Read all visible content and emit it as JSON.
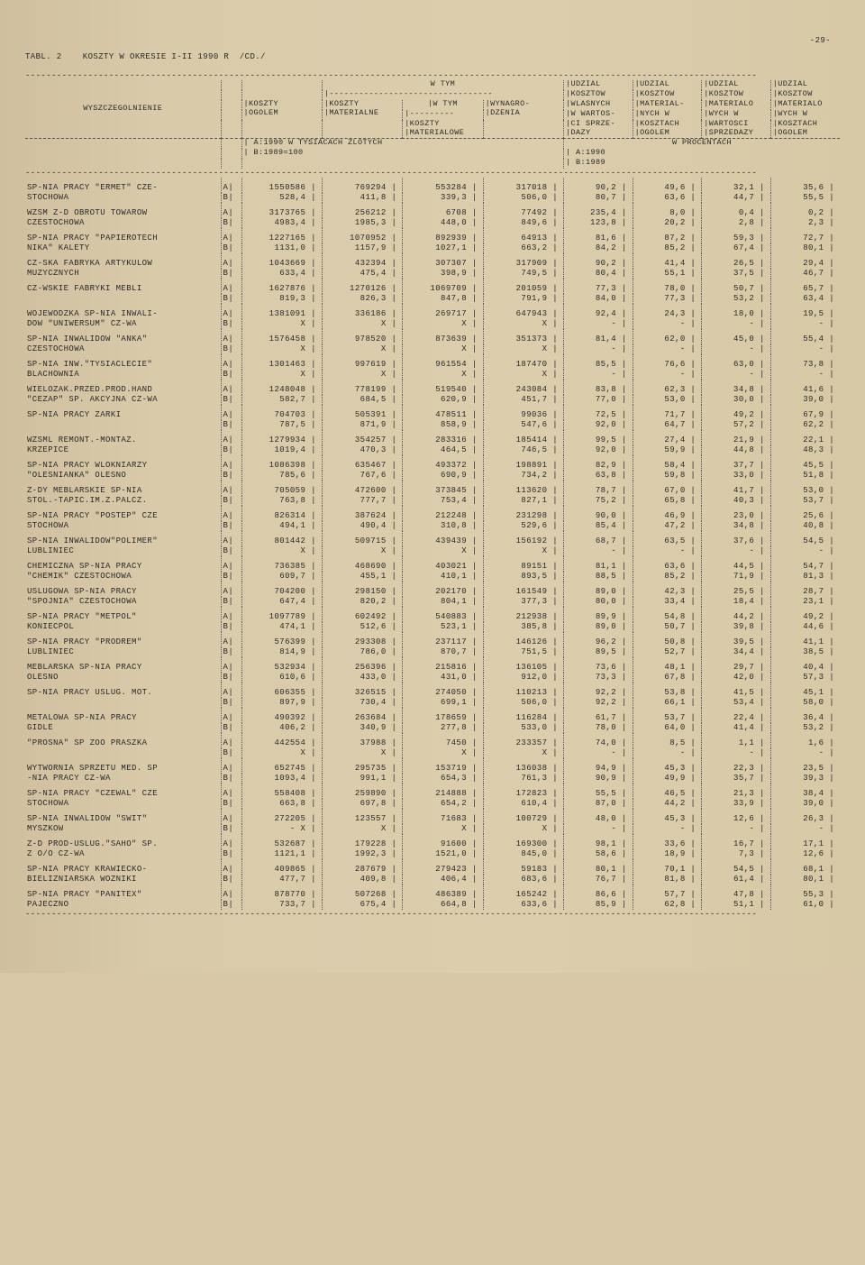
{
  "page_number": "-29-",
  "table_title": "TABL. 2    KOSZTY W OKRESIE I-II 1990 R  /CD./",
  "headers": {
    "col_name": "WYSZCZEGOLNIENIE",
    "koszty_ogolem": "KOSZTY OGOLEM",
    "w_tym": "W TYM",
    "koszty_materialne": "KOSZTY MATERIALNE",
    "w_tym2": "W TYM",
    "koszty_materialowe": "KOSZTY MATERIALOWE",
    "wynagrodzenia": "WYNAGRO- DZENIA",
    "udzial1": "UDZIAL KOSZTOW WLASNYCH W WARTOS- CI SPRZE- DAZY",
    "udzial2": "UDZIAL KOSZTOW MATERIAL- NYCH W KOSZTACH OGOLEM",
    "udzial3": "UDZIAL KOSZTOW MATERIALO WYCH W WARTOSCI SPRZEDAZY",
    "udzial4": "UDZIAL KOSZTOW MATERIALO WYCH W KOSZTACH OGOLEM",
    "w_procentach": "W PROCENTACH",
    "subhead_a": "A:1990 W TYSIACACH ZLOTYCH",
    "subhead_b": "B:1989=100",
    "subhead_a2": "A:1990",
    "subhead_b2": "B:1989"
  },
  "rows": [
    {
      "name": "SP-NIA PRACY \"ERMET\" CZE-\nSTOCHOWA",
      "a": [
        "1550586",
        "769294",
        "553284",
        "317018",
        "90,2",
        "49,6",
        "32,1",
        "35,6"
      ],
      "b": [
        "528,4",
        "411,8",
        "339,3",
        "506,0",
        "80,7",
        "63,6",
        "44,7",
        "55,5"
      ]
    },
    {
      "name": "WZSM Z-D OBROTU TOWAROW\nCZESTOCHOWA",
      "a": [
        "3173765",
        "256212",
        "6708",
        "77492",
        "235,4",
        "8,0",
        "0,4",
        "0,2"
      ],
      "b": [
        "4983,4",
        "1985,3",
        "448,0",
        "849,6",
        "123,8",
        "20,2",
        "2,8",
        "2,3"
      ]
    },
    {
      "name": "SP-NIA PRACY \"PAPIEROTECH\nNIKA\" KALETY",
      "a": [
        "1227165",
        "1070952",
        "892939",
        "64913",
        "81,6",
        "87,2",
        "59,3",
        "72,7"
      ],
      "b": [
        "1131,0",
        "1157,9",
        "1027,1",
        "663,2",
        "84,2",
        "85,2",
        "67,4",
        "80,1"
      ]
    },
    {
      "name": "CZ-SKA FABRYKA ARTYKULOW\nMUZYCZNYCH",
      "a": [
        "1043669",
        "432394",
        "307307",
        "317909",
        "90,2",
        "41,4",
        "26,5",
        "29,4"
      ],
      "b": [
        "633,4",
        "475,4",
        "398,9",
        "749,5",
        "80,4",
        "55,1",
        "37,5",
        "46,7"
      ]
    },
    {
      "name": "CZ-WSKIE FABRYKI MEBLI\n ",
      "a": [
        "1627876",
        "1270126",
        "1069709",
        "201059",
        "77,3",
        "78,0",
        "50,7",
        "65,7"
      ],
      "b": [
        "819,3",
        "826,3",
        "847,8",
        "791,9",
        "84,0",
        "77,3",
        "53,2",
        "63,4"
      ]
    },
    {
      "name": "WOJEWODZKA SP-NIA INWALI-\nDOW \"UNIWERSUM\" CZ-WA",
      "a": [
        "1381091",
        "336186",
        "269717",
        "647943",
        "92,4",
        "24,3",
        "18,0",
        "19,5"
      ],
      "b": [
        "X",
        "X",
        "X",
        "X",
        "-",
        "-",
        "-",
        "-"
      ]
    },
    {
      "name": "SP-NIA INWALIDOW \"ANKA\"\nCZESTOCHOWA",
      "a": [
        "1576458",
        "978520",
        "873639",
        "351373",
        "81,4",
        "62,0",
        "45,0",
        "55,4"
      ],
      "b": [
        "X",
        "X",
        "X",
        "X",
        "-",
        "-",
        "-",
        "-"
      ]
    },
    {
      "name": "SP-NIA INW.\"TYSIACLECIE\"\nBLACHOWNIA",
      "a": [
        "1301463",
        "997619",
        "961554",
        "187470",
        "85,5",
        "76,6",
        "63,0",
        "73,8"
      ],
      "b": [
        "X",
        "X",
        "X",
        "X",
        "-",
        "-",
        "-",
        "-"
      ]
    },
    {
      "name": "WIELOZAK.PRZED.PROD.HAND\n\"CEZAP\" SP. AKCYJNA CZ-WA",
      "a": [
        "1248048",
        "778199",
        "519540",
        "243084",
        "83,8",
        "62,3",
        "34,8",
        "41,6"
      ],
      "b": [
        "582,7",
        "684,5",
        "620,9",
        "451,7",
        "77,0",
        "53,0",
        "30,0",
        "39,0"
      ]
    },
    {
      "name": "SP-NIA PRACY ZARKI\n ",
      "a": [
        "704703",
        "505391",
        "478511",
        "99036",
        "72,5",
        "71,7",
        "49,2",
        "67,9"
      ],
      "b": [
        "787,5",
        "871,9",
        "858,9",
        "547,6",
        "92,0",
        "64,7",
        "57,2",
        "62,2"
      ]
    },
    {
      "name": "WZSML REMONT.-MONTAZ.\nKRZEPICE",
      "a": [
        "1279934",
        "354257",
        "283316",
        "185414",
        "99,5",
        "27,4",
        "21,9",
        "22,1"
      ],
      "b": [
        "1019,4",
        "470,3",
        "464,5",
        "746,5",
        "92,0",
        "59,9",
        "44,8",
        "48,3"
      ]
    },
    {
      "name": "SP-NIA PRACY WLOKNIARZY\n\"OLESNIANKA\" OLESNO",
      "a": [
        "1086398",
        "635467",
        "493372",
        "198891",
        "82,9",
        "58,4",
        "37,7",
        "45,5"
      ],
      "b": [
        "785,6",
        "767,6",
        "690,9",
        "734,2",
        "63,8",
        "59,8",
        "33,0",
        "51,8"
      ]
    },
    {
      "name": "Z-DY MEBLARSKIE SP-NIA\nSTOL.-TAPIC.IM.Z.PALCZ.",
      "a": [
        "705059",
        "472600",
        "373845",
        "113620",
        "78,7",
        "67,0",
        "41,7",
        "53,0"
      ],
      "b": [
        "763,8",
        "777,7",
        "753,4",
        "827,1",
        "75,2",
        "65,8",
        "40,3",
        "53,7"
      ]
    },
    {
      "name": "SP-NIA PRACY \"POSTEP\" CZE\nSTOCHOWA",
      "a": [
        "826314",
        "387624",
        "212248",
        "231298",
        "90,0",
        "46,9",
        "23,0",
        "25,6"
      ],
      "b": [
        "494,1",
        "490,4",
        "310,8",
        "529,6",
        "85,4",
        "47,2",
        "34,8",
        "40,8"
      ]
    },
    {
      "name": "SP-NIA INWALIDOW\"POLIMER\"\nLUBLINIEC",
      "a": [
        "801442",
        "509715",
        "439439",
        "156192",
        "68,7",
        "63,5",
        "37,6",
        "54,5"
      ],
      "b": [
        "X",
        "X",
        "X",
        "X",
        "-",
        "-",
        "-",
        "-"
      ]
    },
    {
      "name": "CHEMICZNA SP-NIA PRACY\n\"CHEMIK\" CZESTOCHOWA",
      "a": [
        "736385",
        "468690",
        "403021",
        "89151",
        "81,1",
        "63,6",
        "44,5",
        "54,7"
      ],
      "b": [
        "609,7",
        "455,1",
        "410,1",
        "893,5",
        "88,5",
        "85,2",
        "71,9",
        "81,3"
      ]
    },
    {
      "name": "USLUGOWA SP-NIA PRACY\n\"SPOJNIA\" CZESTOCHOWA",
      "a": [
        "704200",
        "298150",
        "202170",
        "161549",
        "89,0",
        "42,3",
        "25,5",
        "28,7"
      ],
      "b": [
        "647,4",
        "820,2",
        "804,1",
        "377,3",
        "80,0",
        "33,4",
        "18,4",
        "23,1"
      ]
    },
    {
      "name": "SP-NIA PRACY \"METPOL\"\nKONIECPOL",
      "a": [
        "1097789",
        "602492",
        "540883",
        "212938",
        "89,9",
        "54,8",
        "44,2",
        "49,2"
      ],
      "b": [
        "474,1",
        "512,6",
        "523,1",
        "385,8",
        "89,0",
        "50,7",
        "39,8",
        "44,6"
      ]
    },
    {
      "name": "SP-NIA PRACY \"PRODREM\"\nLUBLINIEC",
      "a": [
        "576399",
        "293308",
        "237117",
        "146126",
        "96,2",
        "50,8",
        "39,5",
        "41,1"
      ],
      "b": [
        "814,9",
        "786,0",
        "870,7",
        "751,5",
        "89,5",
        "52,7",
        "34,4",
        "38,5"
      ]
    },
    {
      "name": "MEBLARSKA SP-NIA PRACY\nOLESNO",
      "a": [
        "532934",
        "256396",
        "215816",
        "136105",
        "73,6",
        "48,1",
        "29,7",
        "40,4"
      ],
      "b": [
        "610,6",
        "433,0",
        "431,0",
        "912,0",
        "73,3",
        "67,8",
        "42,0",
        "57,3"
      ]
    },
    {
      "name": "SP-NIA PRACY USLUG. MOT.\n ",
      "a": [
        "606355",
        "326515",
        "274050",
        "110213",
        "92,2",
        "53,8",
        "41,5",
        "45,1"
      ],
      "b": [
        "897,9",
        "730,4",
        "699,1",
        "506,0",
        "92,2",
        "66,1",
        "53,4",
        "58,0"
      ]
    },
    {
      "name": "METALOWA SP-NIA PRACY\nGIDLE",
      "a": [
        "490392",
        "263684",
        "178659",
        "116284",
        "61,7",
        "53,7",
        "22,4",
        "36,4"
      ],
      "b": [
        "406,2",
        "340,9",
        "277,8",
        "533,0",
        "78,0",
        "64,0",
        "41,4",
        "53,2"
      ]
    },
    {
      "name": "\"PROSNA\" SP ZOO PRASZKA\n ",
      "a": [
        "442554",
        "37988",
        "7450",
        "233357",
        "74,0",
        "8,5",
        "1,1",
        "1,6"
      ],
      "b": [
        "X",
        "X",
        "X",
        "X",
        "-",
        "-",
        "-",
        "-"
      ]
    },
    {
      "name": "WYTWORNIA SPRZETU MED. SP\n-NIA PRACY CZ-WA",
      "a": [
        "652745",
        "295735",
        "153719",
        "136038",
        "94,9",
        "45,3",
        "22,3",
        "23,5"
      ],
      "b": [
        "1093,4",
        "991,1",
        "654,3",
        "761,3",
        "90,9",
        "49,9",
        "35,7",
        "39,3"
      ]
    },
    {
      "name": "SP-NIA PRACY \"CZEWAL\" CZE\nSTOCHOWA",
      "a": [
        "558408",
        "259890",
        "214888",
        "172823",
        "55,5",
        "46,5",
        "21,3",
        "38,4"
      ],
      "b": [
        "663,8",
        "697,8",
        "654,2",
        "610,4",
        "87,0",
        "44,2",
        "33,9",
        "39,0"
      ]
    },
    {
      "name": "SP-NIA INWALIDOW \"SWIT\"\nMYSZKOW",
      "a": [
        "272205",
        "123557",
        "71683",
        "100729",
        "48,0",
        "45,3",
        "12,6",
        "26,3"
      ],
      "b": [
        "- X",
        "X",
        "X",
        "X",
        "-",
        "-",
        "-",
        "-"
      ]
    },
    {
      "name": "Z-D PROD-USLUG.\"SAHO\" SP.\nZ O/O CZ-WA",
      "a": [
        "532687",
        "179228",
        "91600",
        "169300",
        "98,1",
        "33,6",
        "16,7",
        "17,1"
      ],
      "b": [
        "1121,1",
        "1992,3",
        "1521,0",
        "845,0",
        "58,6",
        "18,9",
        "7,3",
        "12,6"
      ]
    },
    {
      "name": "SP-NIA PRACY KRAWIECKO-\nBIELIZNIARSKA WOZNIKI",
      "a": [
        "409865",
        "287679",
        "279423",
        "59183",
        "80,1",
        "70,1",
        "54,5",
        "68,1"
      ],
      "b": [
        "477,7",
        "409,8",
        "406,4",
        "683,6",
        "76,7",
        "81,8",
        "61,4",
        "80,1"
      ]
    },
    {
      "name": "SP-NIA PRACY \"PANITEX\"\nPAJECZNO",
      "a": [
        "878770",
        "507268",
        "486389",
        "165242",
        "86,6",
        "57,7",
        "47,8",
        "55,3"
      ],
      "b": [
        "733,7",
        "675,4",
        "664,8",
        "633,6",
        "85,9",
        "62,8",
        "51,1",
        "61,0"
      ]
    }
  ]
}
